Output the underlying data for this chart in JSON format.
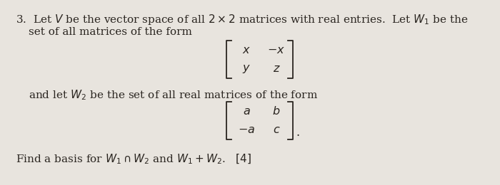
{
  "background_color": "#e8e4de",
  "text_color": "#2a2520",
  "fig_width": 7.0,
  "fig_height": 2.6,
  "dpi": 100,
  "line1": "3.  Let $V$ be the vector space of all $2 \\times 2$ matrices with real entries.  Let $W_1$ be the",
  "line2": "set of all matrices of the form",
  "matrix1_r1c1": "$x$",
  "matrix1_r1c2": "$-x$",
  "matrix1_r2c1": "$y$",
  "matrix1_r2c2": "$z$",
  "line3": "and let $W_2$ be the set of all real matrices of the form",
  "matrix2_r1c1": "$a$",
  "matrix2_r1c2": "$b$",
  "matrix2_r2c1": "$-a$",
  "matrix2_r2c2": "$c$",
  "line4": "Find a basis for $W_1 \\cap W_2$ and $W_1 + W_2$.   $[4]$",
  "fs_main": 11.0,
  "fs_matrix": 11.5
}
